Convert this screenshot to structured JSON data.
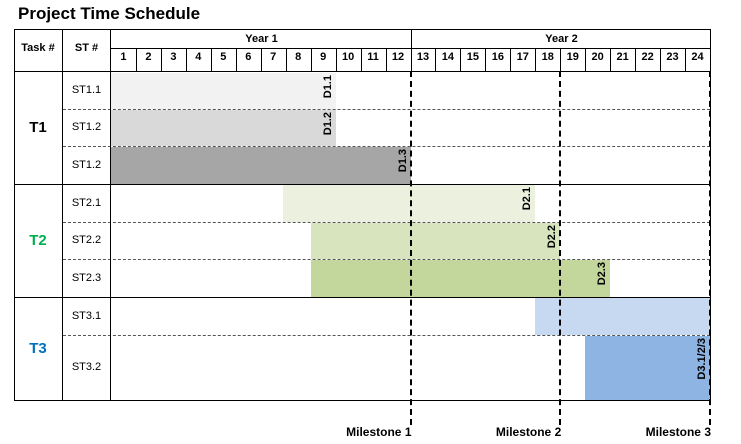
{
  "title": "Project Time Schedule",
  "header": {
    "task_col": "Task #",
    "st_col": "ST #",
    "year1": "Year 1",
    "year2": "Year 2",
    "months": [
      "1",
      "2",
      "3",
      "4",
      "5",
      "6",
      "7",
      "8",
      "9",
      "10",
      "11",
      "12",
      "13",
      "14",
      "15",
      "16",
      "17",
      "18",
      "19",
      "20",
      "21",
      "22",
      "23",
      "24"
    ]
  },
  "tasks": [
    {
      "label": "T1",
      "color": "#000000"
    },
    {
      "label": "T2",
      "color": "#00B050"
    },
    {
      "label": "T3",
      "color": "#0070C0"
    }
  ],
  "subtasks": [
    {
      "label": "ST1.1",
      "start_month": 1,
      "end_month": 9,
      "color": "#F2F2F2",
      "deliverable": "D1.1"
    },
    {
      "label": "ST1.2",
      "start_month": 1,
      "end_month": 9,
      "color": "#D9D9D9",
      "deliverable": "D1.2"
    },
    {
      "label": "ST1.2",
      "start_month": 1,
      "end_month": 12,
      "color": "#A6A6A6",
      "deliverable": "D1.3"
    },
    {
      "label": "ST2.1",
      "start_month": 8,
      "end_month": 17,
      "color": "#EBF1DE",
      "deliverable": "D2.1"
    },
    {
      "label": "ST2.2",
      "start_month": 9,
      "end_month": 18,
      "color": "#D7E4BD",
      "deliverable": "D2.2"
    },
    {
      "label": "ST2.3",
      "start_month": 9,
      "end_month": 20,
      "color": "#C3D69B",
      "deliverable": "D2.3"
    },
    {
      "label": "ST3.1",
      "start_month": 18,
      "end_month": 24,
      "color": "#C6D9F1",
      "deliverable": ""
    },
    {
      "label": "ST3.2",
      "start_month": 20,
      "end_month": 24,
      "color": "#8DB4E2",
      "deliverable": "D3.1/2/3"
    }
  ],
  "milestones": [
    {
      "label": "Milestone 1",
      "month": 12
    },
    {
      "label": "Milestone 2",
      "month": 18
    },
    {
      "label": "Milestone 3",
      "month": 24
    }
  ]
}
